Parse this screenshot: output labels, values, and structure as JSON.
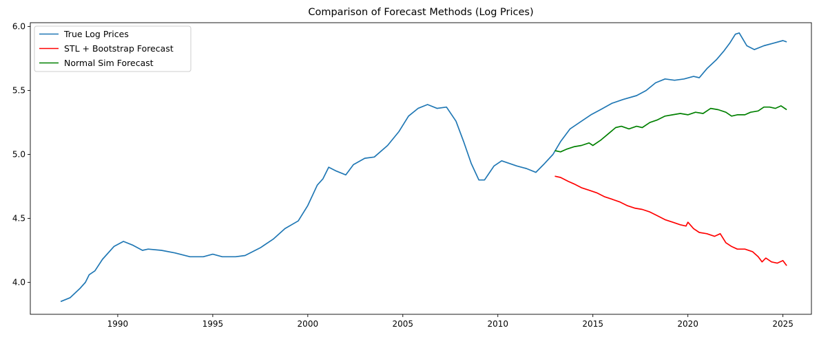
{
  "chart_data": {
    "type": "line",
    "title": "Comparison of Forecast Methods (Log Prices)",
    "xlabel": "",
    "ylabel": "",
    "xlim": [
      1985.4,
      2026.5
    ],
    "ylim": [
      3.75,
      6.03
    ],
    "x_ticks": [
      1990,
      1995,
      2000,
      2005,
      2010,
      2015,
      2020,
      2025
    ],
    "y_ticks": [
      4.0,
      4.5,
      5.0,
      5.5,
      6.0
    ],
    "y_tick_labels": [
      "4.0",
      "4.5",
      "5.0",
      "5.5",
      "6.0"
    ],
    "grid": false,
    "legend_position": "top-left",
    "series": [
      {
        "name": "True Log Prices",
        "color": "#1f77b4",
        "points": [
          [
            1987.0,
            3.85
          ],
          [
            1987.5,
            3.88
          ],
          [
            1988.0,
            3.95
          ],
          [
            1988.3,
            4.0
          ],
          [
            1988.5,
            4.06
          ],
          [
            1988.8,
            4.09
          ],
          [
            1989.2,
            4.18
          ],
          [
            1989.8,
            4.28
          ],
          [
            1990.3,
            4.32
          ],
          [
            1990.8,
            4.29
          ],
          [
            1991.3,
            4.25
          ],
          [
            1991.6,
            4.26
          ],
          [
            1992.3,
            4.25
          ],
          [
            1993.0,
            4.23
          ],
          [
            1993.8,
            4.2
          ],
          [
            1994.5,
            4.2
          ],
          [
            1995.0,
            4.22
          ],
          [
            1995.5,
            4.2
          ],
          [
            1996.2,
            4.2
          ],
          [
            1996.7,
            4.21
          ],
          [
            1997.5,
            4.27
          ],
          [
            1998.2,
            4.34
          ],
          [
            1998.8,
            4.42
          ],
          [
            1999.5,
            4.48
          ],
          [
            2000.0,
            4.6
          ],
          [
            2000.5,
            4.76
          ],
          [
            2000.8,
            4.81
          ],
          [
            2001.1,
            4.9
          ],
          [
            2001.5,
            4.87
          ],
          [
            2002.0,
            4.84
          ],
          [
            2002.4,
            4.92
          ],
          [
            2003.0,
            4.97
          ],
          [
            2003.5,
            4.98
          ],
          [
            2004.2,
            5.07
          ],
          [
            2004.8,
            5.18
          ],
          [
            2005.3,
            5.3
          ],
          [
            2005.8,
            5.36
          ],
          [
            2006.3,
            5.39
          ],
          [
            2006.8,
            5.36
          ],
          [
            2007.3,
            5.37
          ],
          [
            2007.8,
            5.26
          ],
          [
            2008.2,
            5.1
          ],
          [
            2008.6,
            4.93
          ],
          [
            2009.0,
            4.8
          ],
          [
            2009.3,
            4.8
          ],
          [
            2009.8,
            4.91
          ],
          [
            2010.2,
            4.95
          ],
          [
            2010.6,
            4.93
          ],
          [
            2011.0,
            4.91
          ],
          [
            2011.5,
            4.89
          ],
          [
            2012.0,
            4.86
          ],
          [
            2012.4,
            4.92
          ],
          [
            2012.9,
            5.0
          ],
          [
            2013.3,
            5.1
          ],
          [
            2013.8,
            5.2
          ],
          [
            2014.3,
            5.25
          ],
          [
            2014.9,
            5.31
          ],
          [
            2015.4,
            5.35
          ],
          [
            2016.0,
            5.4
          ],
          [
            2016.6,
            5.43
          ],
          [
            2017.3,
            5.46
          ],
          [
            2017.8,
            5.5
          ],
          [
            2018.3,
            5.56
          ],
          [
            2018.8,
            5.59
          ],
          [
            2019.3,
            5.58
          ],
          [
            2019.8,
            5.59
          ],
          [
            2020.3,
            5.61
          ],
          [
            2020.6,
            5.6
          ],
          [
            2021.0,
            5.67
          ],
          [
            2021.5,
            5.74
          ],
          [
            2021.9,
            5.81
          ],
          [
            2022.2,
            5.87
          ],
          [
            2022.5,
            5.94
          ],
          [
            2022.7,
            5.95
          ],
          [
            2022.9,
            5.9
          ],
          [
            2023.1,
            5.85
          ],
          [
            2023.5,
            5.82
          ],
          [
            2024.0,
            5.85
          ],
          [
            2024.5,
            5.87
          ],
          [
            2025.0,
            5.89
          ],
          [
            2025.2,
            5.88
          ]
        ]
      },
      {
        "name": "STL + Bootstrap Forecast",
        "color": "#ff0000",
        "points": [
          [
            2013.0,
            4.83
          ],
          [
            2013.3,
            4.82
          ],
          [
            2013.7,
            4.79
          ],
          [
            2014.0,
            4.77
          ],
          [
            2014.4,
            4.74
          ],
          [
            2014.8,
            4.72
          ],
          [
            2015.2,
            4.7
          ],
          [
            2015.6,
            4.67
          ],
          [
            2016.0,
            4.65
          ],
          [
            2016.4,
            4.63
          ],
          [
            2016.8,
            4.6
          ],
          [
            2017.2,
            4.58
          ],
          [
            2017.6,
            4.57
          ],
          [
            2018.0,
            4.55
          ],
          [
            2018.4,
            4.52
          ],
          [
            2018.8,
            4.49
          ],
          [
            2019.2,
            4.47
          ],
          [
            2019.6,
            4.45
          ],
          [
            2019.9,
            4.44
          ],
          [
            2020.0,
            4.47
          ],
          [
            2020.3,
            4.42
          ],
          [
            2020.6,
            4.39
          ],
          [
            2021.0,
            4.38
          ],
          [
            2021.4,
            4.36
          ],
          [
            2021.7,
            4.38
          ],
          [
            2022.0,
            4.31
          ],
          [
            2022.3,
            4.28
          ],
          [
            2022.6,
            4.26
          ],
          [
            2023.0,
            4.26
          ],
          [
            2023.4,
            4.24
          ],
          [
            2023.7,
            4.2
          ],
          [
            2023.9,
            4.16
          ],
          [
            2024.1,
            4.19
          ],
          [
            2024.4,
            4.16
          ],
          [
            2024.7,
            4.15
          ],
          [
            2025.0,
            4.17
          ],
          [
            2025.2,
            4.13
          ]
        ]
      },
      {
        "name": "Normal Sim Forecast",
        "color": "#008000",
        "points": [
          [
            2013.0,
            5.03
          ],
          [
            2013.3,
            5.02
          ],
          [
            2013.6,
            5.04
          ],
          [
            2014.0,
            5.06
          ],
          [
            2014.4,
            5.07
          ],
          [
            2014.8,
            5.09
          ],
          [
            2015.0,
            5.07
          ],
          [
            2015.4,
            5.11
          ],
          [
            2015.8,
            5.16
          ],
          [
            2016.2,
            5.21
          ],
          [
            2016.5,
            5.22
          ],
          [
            2016.9,
            5.2
          ],
          [
            2017.3,
            5.22
          ],
          [
            2017.6,
            5.21
          ],
          [
            2018.0,
            5.25
          ],
          [
            2018.4,
            5.27
          ],
          [
            2018.8,
            5.3
          ],
          [
            2019.2,
            5.31
          ],
          [
            2019.6,
            5.32
          ],
          [
            2020.0,
            5.31
          ],
          [
            2020.4,
            5.33
          ],
          [
            2020.8,
            5.32
          ],
          [
            2021.2,
            5.36
          ],
          [
            2021.6,
            5.35
          ],
          [
            2022.0,
            5.33
          ],
          [
            2022.3,
            5.3
          ],
          [
            2022.6,
            5.31
          ],
          [
            2023.0,
            5.31
          ],
          [
            2023.3,
            5.33
          ],
          [
            2023.7,
            5.34
          ],
          [
            2024.0,
            5.37
          ],
          [
            2024.3,
            5.37
          ],
          [
            2024.6,
            5.36
          ],
          [
            2024.9,
            5.38
          ],
          [
            2025.2,
            5.35
          ]
        ]
      }
    ]
  }
}
